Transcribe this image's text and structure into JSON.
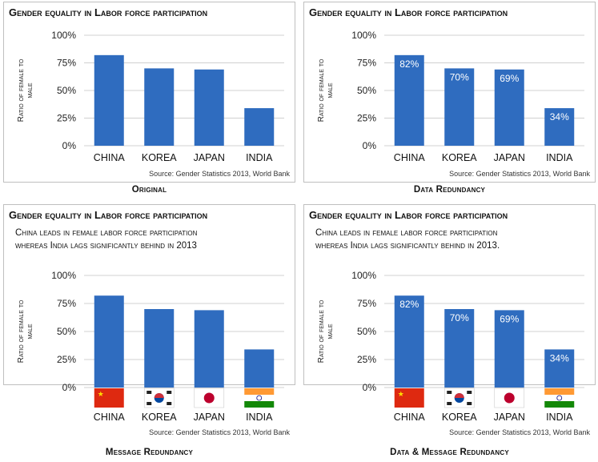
{
  "panels": [
    {
      "title": "Gender equality in Labor force participation",
      "message": [],
      "caption": "Original",
      "source": "Source: Gender Statistics 2013, World Bank",
      "ylabel_line1": "Ratio of female to",
      "ylabel_line2": "male"
    },
    {
      "title": "Gender equality in Labor force participation",
      "message": [],
      "caption": "Data Redundancy",
      "source": "Source: Gender Statistics 2013, World Bank",
      "ylabel_line1": "Ratio of female to",
      "ylabel_line2": "male"
    },
    {
      "title": "Gender equality in Labor force participation",
      "message": [
        "China leads in female labor force participation",
        "whereas India lags significantly behind in 2013"
      ],
      "caption": "Message Redundancy",
      "source": "Source: Gender Statistics 2013, World Bank",
      "ylabel_line1": "Ratio of female to",
      "ylabel_line2": "male"
    },
    {
      "title": "Gender equality in Labor force participation",
      "message": [
        "China leads in female labor force participation",
        "whereas India lags significantly behind in 2013."
      ],
      "caption": "Data & Message Redundancy",
      "source": "Source: Gender Statistics 2013, World Bank",
      "ylabel_line1": "Ratio of female to",
      "ylabel_line2": "male"
    }
  ],
  "chart_data": [
    {
      "type": "bar",
      "title": "Gender equality in Labor force participation",
      "categories": [
        "CHINA",
        "KOREA",
        "JAPAN",
        "INDIA"
      ],
      "values": [
        82,
        70,
        69,
        34
      ],
      "data_labels": [],
      "flags": false,
      "ylabel": "Ratio of female to male",
      "ylim": [
        0,
        100
      ],
      "yticks": [
        "0%",
        "25%",
        "50%",
        "75%",
        "100%"
      ],
      "grid": true,
      "bar_color": "#2f6cbf"
    },
    {
      "type": "bar",
      "title": "Gender equality in Labor force participation",
      "categories": [
        "CHINA",
        "KOREA",
        "JAPAN",
        "INDIA"
      ],
      "values": [
        82,
        70,
        69,
        34
      ],
      "data_labels": [
        "82%",
        "70%",
        "69%",
        "34%"
      ],
      "flags": false,
      "ylabel": "Ratio of female to male",
      "ylim": [
        0,
        100
      ],
      "yticks": [
        "0%",
        "25%",
        "50%",
        "75%",
        "100%"
      ],
      "grid": true,
      "bar_color": "#2f6cbf"
    },
    {
      "type": "bar",
      "title": "Gender equality in Labor force participation",
      "categories": [
        "CHINA",
        "KOREA",
        "JAPAN",
        "INDIA"
      ],
      "values": [
        82,
        70,
        69,
        34
      ],
      "data_labels": [],
      "flags": true,
      "ylabel": "Ratio of female to male",
      "ylim": [
        0,
        100
      ],
      "yticks": [
        "0%",
        "25%",
        "50%",
        "75%",
        "100%"
      ],
      "grid": true,
      "bar_color": "#2f6cbf"
    },
    {
      "type": "bar",
      "title": "Gender equality in Labor force participation",
      "categories": [
        "CHINA",
        "KOREA",
        "JAPAN",
        "INDIA"
      ],
      "values": [
        82,
        70,
        69,
        34
      ],
      "data_labels": [
        "82%",
        "70%",
        "69%",
        "34%"
      ],
      "flags": true,
      "ylabel": "Ratio of female to male",
      "ylim": [
        0,
        100
      ],
      "yticks": [
        "0%",
        "25%",
        "50%",
        "75%",
        "100%"
      ],
      "grid": true,
      "bar_color": "#2f6cbf"
    }
  ],
  "flag_icons": [
    "china-flag-icon",
    "korea-flag-icon",
    "japan-flag-icon",
    "india-flag-icon"
  ]
}
